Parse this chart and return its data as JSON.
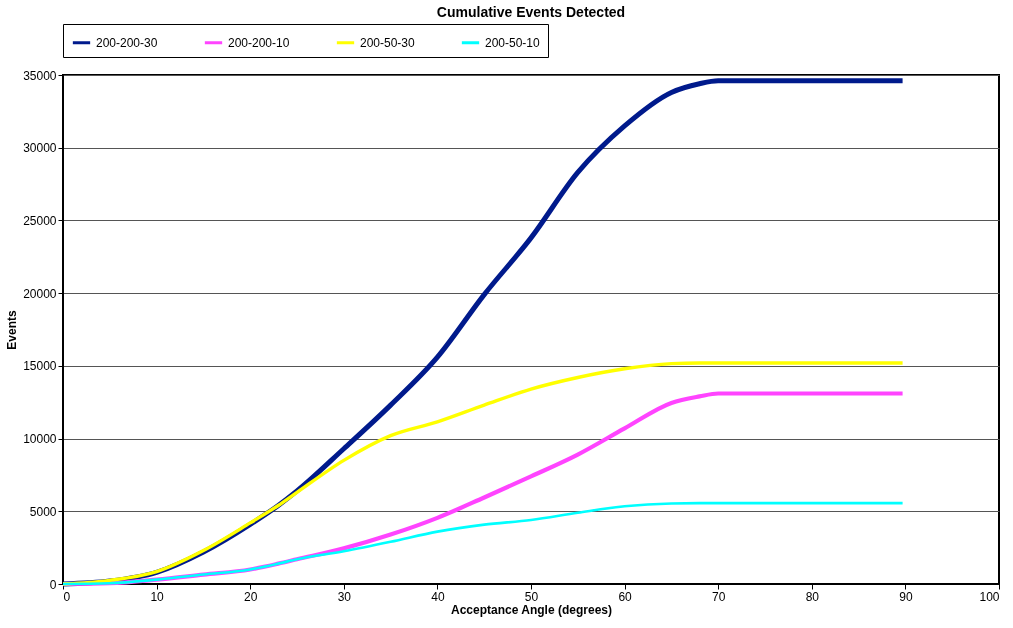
{
  "chart_data": {
    "type": "line",
    "title": "Cumulative Events Detected",
    "xlabel": "Acceptance Angle (degrees)",
    "ylabel": "Events",
    "xlim": [
      0,
      100
    ],
    "xticks": [
      0,
      10,
      20,
      30,
      40,
      50,
      60,
      70,
      80,
      90,
      100
    ],
    "ylim": [
      0,
      35000
    ],
    "yticks": [
      0,
      5000,
      10000,
      15000,
      20000,
      25000,
      30000,
      35000
    ],
    "grid": "y",
    "legend": "top",
    "marker": "none",
    "line_style": "solid",
    "x": [
      0,
      5,
      10,
      15,
      20,
      23,
      25,
      30,
      35,
      40,
      45,
      50,
      55,
      60,
      65,
      68,
      70,
      75,
      89.7
    ],
    "series": [
      {
        "name": "200-200-30",
        "color": "#001a8c",
        "values": [
          0,
          200,
          800,
          2200,
          4100,
          5400,
          6400,
          9300,
          12300,
          15600,
          19900,
          23800,
          28300,
          31500,
          33800,
          34400,
          34600,
          34600,
          34600
        ]
      },
      {
        "name": "200-200-10",
        "color": "#ff44ff",
        "values": [
          0,
          50,
          300,
          650,
          1000,
          1400,
          1700,
          2450,
          3400,
          4550,
          5950,
          7400,
          8900,
          10700,
          12450,
          12900,
          13100,
          13100,
          13100
        ]
      },
      {
        "name": "200-50-30",
        "color": "#ffff00",
        "values": [
          0,
          250,
          850,
          2300,
          4200,
          5400,
          6300,
          8500,
          10200,
          11150,
          12300,
          13400,
          14200,
          14800,
          15150,
          15200,
          15200,
          15200,
          15200
        ]
      },
      {
        "name": "200-50-10",
        "color": "#00ffff",
        "values": [
          0,
          50,
          300,
          650,
          1000,
          1400,
          1700,
          2250,
          2900,
          3600,
          4080,
          4400,
          4900,
          5350,
          5540,
          5560,
          5560,
          5560,
          5560
        ]
      }
    ]
  }
}
